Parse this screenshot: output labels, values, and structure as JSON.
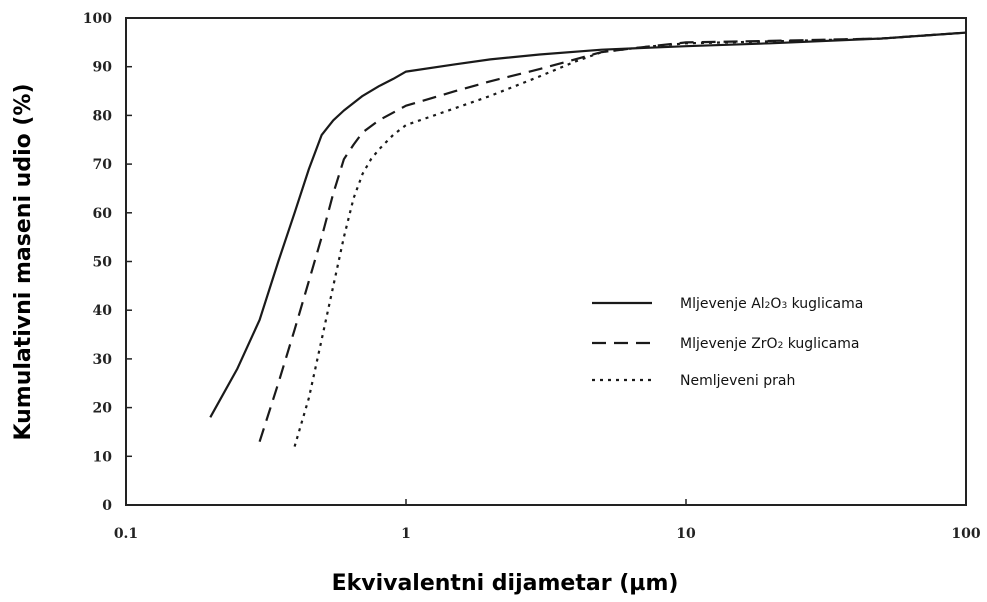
{
  "chart_data": {
    "type": "line",
    "xlabel": "Ekvivalentni dijametar (µm)",
    "ylabel": "Kumulativni maseni udio (%)",
    "xscale": "log",
    "xlim": [
      0.1,
      100
    ],
    "ylim": [
      0,
      100
    ],
    "x_ticks": [
      "0.1",
      "1",
      "10",
      "100"
    ],
    "y_ticks": [
      "0",
      "10",
      "20",
      "30",
      "40",
      "50",
      "60",
      "70",
      "80",
      "90",
      "100"
    ],
    "grid": false,
    "legend_position": "center-right",
    "series": [
      {
        "name_parts": [
          "Mljevenje Al",
          "2",
          "O",
          "3",
          " kuglicama"
        ],
        "style": "solid",
        "color": "#1a1a1a",
        "points": [
          [
            0.2,
            18
          ],
          [
            0.25,
            28
          ],
          [
            0.3,
            38
          ],
          [
            0.35,
            50
          ],
          [
            0.4,
            60
          ],
          [
            0.45,
            69
          ],
          [
            0.5,
            76
          ],
          [
            0.55,
            79
          ],
          [
            0.6,
            81
          ],
          [
            0.7,
            84
          ],
          [
            0.8,
            86
          ],
          [
            0.9,
            87.5
          ],
          [
            1.0,
            89
          ],
          [
            1.5,
            90.5
          ],
          [
            2,
            91.5
          ],
          [
            3,
            92.5
          ],
          [
            5,
            93.5
          ],
          [
            10,
            94.2
          ],
          [
            20,
            94.8
          ],
          [
            50,
            95.8
          ],
          [
            100,
            97
          ]
        ]
      },
      {
        "name_parts": [
          "Mljevenje ZrO",
          "2",
          " kuglicama"
        ],
        "style": "dashed",
        "color": "#1a1a1a",
        "points": [
          [
            0.3,
            13
          ],
          [
            0.35,
            25
          ],
          [
            0.4,
            36
          ],
          [
            0.45,
            46
          ],
          [
            0.5,
            55
          ],
          [
            0.55,
            64
          ],
          [
            0.6,
            71
          ],
          [
            0.65,
            74
          ],
          [
            0.7,
            76.5
          ],
          [
            0.8,
            79
          ],
          [
            1.0,
            82
          ],
          [
            1.5,
            85
          ],
          [
            2,
            87
          ],
          [
            3,
            89.5
          ],
          [
            5,
            93
          ],
          [
            7,
            94
          ],
          [
            10,
            95
          ],
          [
            20,
            95.3
          ],
          [
            50,
            95.8
          ],
          [
            100,
            97
          ]
        ]
      },
      {
        "name_parts": [
          "Nemljeveni prah"
        ],
        "style": "dotted",
        "color": "#1a1a1a",
        "points": [
          [
            0.4,
            12
          ],
          [
            0.45,
            22
          ],
          [
            0.5,
            34
          ],
          [
            0.55,
            45
          ],
          [
            0.6,
            55
          ],
          [
            0.65,
            63
          ],
          [
            0.7,
            68
          ],
          [
            0.75,
            71
          ],
          [
            0.8,
            73
          ],
          [
            0.9,
            76
          ],
          [
            1.0,
            78
          ],
          [
            1.5,
            81.5
          ],
          [
            2,
            84
          ],
          [
            3,
            88
          ],
          [
            4,
            91
          ],
          [
            5,
            93
          ],
          [
            7,
            94
          ],
          [
            10,
            94.8
          ],
          [
            20,
            95.2
          ],
          [
            50,
            95.8
          ],
          [
            100,
            97
          ]
        ]
      }
    ]
  }
}
